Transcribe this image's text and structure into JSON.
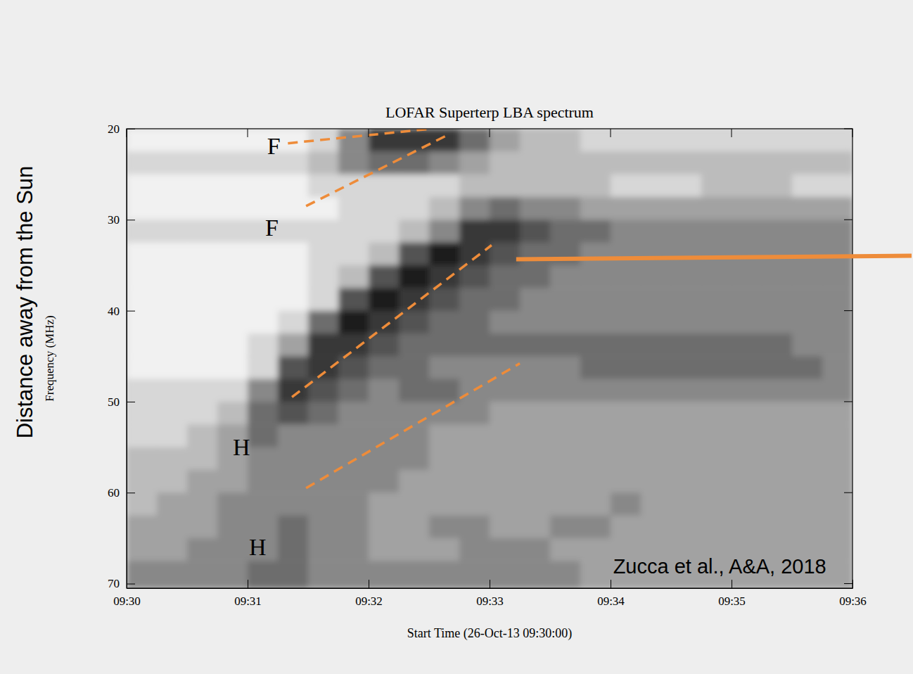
{
  "chart_data": {
    "type": "heatmap",
    "title": "LOFAR Superterp LBA spectrum",
    "xlabel": "Start Time (26-Oct-13 09:30:00)",
    "ylabel": "Frequency (MHz)",
    "axis_note": "Distance away from the Sun",
    "xlim": [
      "09:30",
      "09:36"
    ],
    "xticks": [
      "09:30",
      "09:31",
      "09:32",
      "09:33",
      "09:34",
      "09:35",
      "09:36"
    ],
    "ylim": [
      20,
      70.5
    ],
    "yticks": [
      20,
      30,
      40,
      50,
      60,
      70
    ],
    "x": [
      "09:30:00",
      "09:30:15",
      "09:30:30",
      "09:30:45",
      "09:31:00",
      "09:31:15",
      "09:31:30",
      "09:31:45",
      "09:32:00",
      "09:32:15",
      "09:32:30",
      "09:32:45",
      "09:33:00",
      "09:33:15",
      "09:33:30",
      "09:33:45",
      "09:34:00",
      "09:34:15",
      "09:34:30",
      "09:34:45",
      "09:35:00",
      "09:35:15",
      "09:35:30",
      "09:35:45"
    ],
    "y": [
      20,
      22.5,
      25,
      27.5,
      30,
      32.5,
      35,
      37.5,
      40,
      42.5,
      45,
      47.5,
      50,
      52.5,
      55,
      57.5,
      60,
      62.5,
      65,
      67.5
    ],
    "cells": [
      [
        1,
        1,
        1,
        1,
        1,
        1,
        2,
        5,
        8,
        8,
        8,
        6,
        4,
        3,
        3,
        2,
        2,
        2,
        2,
        2,
        2,
        2,
        2,
        2
      ],
      [
        2,
        2,
        2,
        2,
        2,
        2,
        3,
        5,
        6,
        6,
        5,
        4,
        3,
        3,
        3,
        3,
        3,
        3,
        3,
        3,
        3,
        3,
        3,
        3
      ],
      [
        1,
        1,
        1,
        1,
        1,
        1,
        2,
        2,
        2,
        2,
        2,
        3,
        3,
        3,
        3,
        3,
        2,
        2,
        2,
        3,
        3,
        3,
        2,
        2
      ],
      [
        1,
        1,
        1,
        1,
        1,
        1,
        1,
        2,
        2,
        2,
        3,
        5,
        6,
        5,
        5,
        4,
        4,
        4,
        4,
        4,
        4,
        4,
        4,
        4
      ],
      [
        2,
        2,
        2,
        2,
        2,
        2,
        2,
        2,
        2,
        3,
        5,
        8,
        8,
        7,
        6,
        6,
        5,
        5,
        5,
        5,
        5,
        5,
        5,
        5
      ],
      [
        1,
        1,
        1,
        1,
        1,
        1,
        2,
        2,
        3,
        7,
        9,
        8,
        7,
        6,
        6,
        5,
        5,
        5,
        5,
        5,
        5,
        5,
        5,
        5
      ],
      [
        1,
        1,
        1,
        1,
        1,
        1,
        2,
        3,
        7,
        9,
        8,
        7,
        6,
        6,
        5,
        5,
        5,
        5,
        5,
        5,
        5,
        5,
        5,
        5
      ],
      [
        1,
        1,
        1,
        1,
        1,
        1,
        2,
        7,
        9,
        8,
        7,
        6,
        6,
        5,
        5,
        5,
        5,
        5,
        5,
        5,
        5,
        5,
        5,
        5
      ],
      [
        1,
        1,
        1,
        1,
        1,
        2,
        6,
        9,
        8,
        7,
        6,
        6,
        5,
        5,
        5,
        5,
        5,
        5,
        5,
        5,
        5,
        5,
        5,
        5
      ],
      [
        1,
        1,
        1,
        1,
        2,
        4,
        8,
        8,
        7,
        6,
        6,
        6,
        6,
        6,
        6,
        6,
        6,
        6,
        6,
        6,
        6,
        6,
        5,
        5
      ],
      [
        1,
        1,
        1,
        1,
        2,
        7,
        8,
        7,
        6,
        6,
        5,
        5,
        5,
        5,
        5,
        6,
        6,
        6,
        6,
        6,
        6,
        6,
        6,
        5
      ],
      [
        2,
        2,
        2,
        2,
        5,
        8,
        7,
        6,
        5,
        6,
        6,
        5,
        5,
        5,
        5,
        5,
        5,
        5,
        5,
        5,
        5,
        5,
        5,
        5
      ],
      [
        2,
        2,
        2,
        3,
        6,
        7,
        6,
        5,
        5,
        5,
        5,
        5,
        4,
        4,
        4,
        4,
        4,
        4,
        4,
        4,
        4,
        4,
        4,
        4
      ],
      [
        2,
        2,
        3,
        4,
        6,
        5,
        5,
        5,
        5,
        5,
        4,
        4,
        4,
        4,
        4,
        4,
        4,
        4,
        4,
        4,
        4,
        4,
        4,
        4
      ],
      [
        3,
        3,
        3,
        4,
        5,
        5,
        5,
        5,
        5,
        5,
        4,
        4,
        4,
        4,
        4,
        4,
        4,
        4,
        4,
        4,
        4,
        4,
        4,
        4
      ],
      [
        3,
        3,
        4,
        4,
        5,
        5,
        5,
        5,
        5,
        4,
        4,
        4,
        4,
        4,
        4,
        4,
        4,
        4,
        4,
        4,
        4,
        4,
        4,
        4
      ],
      [
        3,
        4,
        4,
        5,
        5,
        5,
        5,
        5,
        4,
        4,
        4,
        4,
        4,
        4,
        4,
        4,
        5,
        4,
        4,
        4,
        4,
        4,
        4,
        4
      ],
      [
        4,
        4,
        4,
        5,
        5,
        6,
        5,
        5,
        4,
        4,
        5,
        5,
        4,
        4,
        5,
        5,
        4,
        4,
        4,
        4,
        4,
        4,
        4,
        4
      ],
      [
        4,
        4,
        5,
        5,
        5,
        6,
        5,
        5,
        4,
        4,
        4,
        5,
        5,
        5,
        4,
        4,
        4,
        4,
        4,
        4,
        4,
        4,
        4,
        4
      ],
      [
        5,
        5,
        5,
        5,
        6,
        6,
        5,
        5,
        5,
        5,
        5,
        5,
        5,
        5,
        5,
        4,
        4,
        4,
        4,
        4,
        4,
        4,
        4,
        4
      ]
    ],
    "color": "#ee8c3a",
    "lines": [
      {
        "x": [
          "09:31:20",
          "09:32:31"
        ],
        "y": [
          21.6,
          20
        ],
        "line_style": "dashed"
      },
      {
        "x": [
          "09:31:29",
          "09:32:40"
        ],
        "y": [
          28.5,
          20.6
        ],
        "line_style": "dashed"
      },
      {
        "x": [
          "09:31:22",
          "09:33:01"
        ],
        "y": [
          49.5,
          32.8
        ],
        "line_style": "dashed"
      },
      {
        "x": [
          "09:31:29",
          "09:33:15"
        ],
        "y": [
          59.5,
          45.8
        ],
        "line_style": "dashed"
      }
    ],
    "annotations": [
      {
        "text": "F",
        "x": "09:31:13",
        "y": 21.9
      },
      {
        "text": "F",
        "x": "09:31:12",
        "y": 30.9
      },
      {
        "text": "H",
        "x": "09:30:57",
        "y": 55.0
      },
      {
        "text": "H",
        "x": "09:31:05",
        "y": 66.0
      }
    ],
    "source": {
      "text": "Zucca et al., A&A, 2018",
      "x": "09:35:47",
      "y": 68.1
    }
  }
}
